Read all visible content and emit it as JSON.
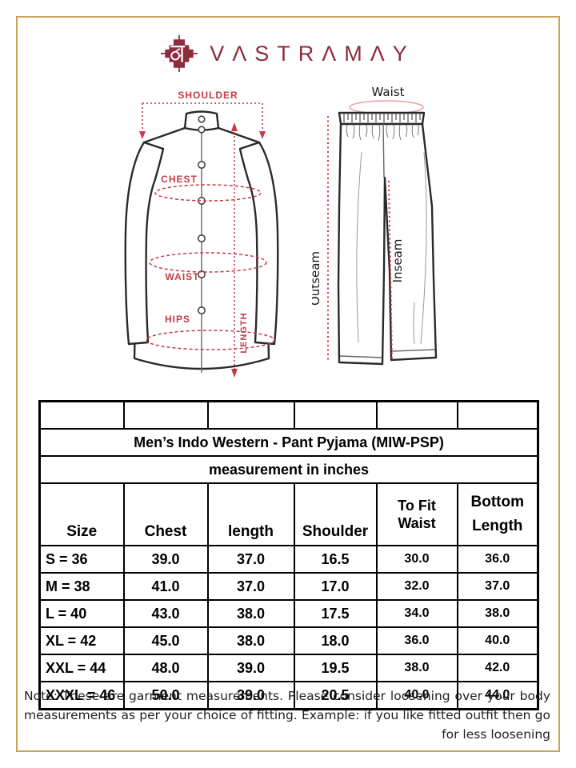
{
  "brand": {
    "name": "VASTRAMAY",
    "display": "VΛSTRΛMΛY",
    "logo_glyph": "व"
  },
  "diagrams": {
    "kurta": {
      "shoulder": "SHOULDER",
      "chest": "CHEST",
      "waist": "WAIST",
      "hips": "HIPS",
      "length": "LENGTH"
    },
    "pant": {
      "waist": "Waist",
      "outseam": "Outseam",
      "inseam": "Inseam"
    }
  },
  "size_chart": {
    "title": "Men’s Indo Western - Pant Pyjama (MIW-PSP)",
    "subtitle": "measurement in inches",
    "columns": [
      "Size",
      "Chest",
      "length",
      "Shoulder",
      "To Fit Waist",
      "Bottom Length"
    ],
    "column_keys": [
      "size",
      "chest",
      "length",
      "shoulder",
      "to_fit_waist",
      "bottom_length"
    ],
    "rows": [
      [
        "S = 36",
        "39.0",
        "37.0",
        "16.5",
        "30.0",
        "36.0"
      ],
      [
        "M = 38",
        "41.0",
        "37.0",
        "17.0",
        "32.0",
        "37.0"
      ],
      [
        "L = 40",
        "43.0",
        "38.0",
        "17.5",
        "34.0",
        "38.0"
      ],
      [
        "XL = 42",
        "45.0",
        "38.0",
        "18.0",
        "36.0",
        "40.0"
      ],
      [
        "XXL = 44",
        "48.0",
        "39.0",
        "19.5",
        "38.0",
        "42.0"
      ],
      [
        "XXXL = 46",
        "50.0",
        "39.0",
        "20.5",
        "40.0",
        "44.0"
      ]
    ]
  },
  "note": "Note: These are garment measurements. Please consider loosening over your body measurements as per your choice of fitting. Example: if you like fitted outfit then go for less loosening",
  "colors": {
    "brand_maroon": "#8e2b3e",
    "annotation_red": "#c43b45",
    "dotted_red": "#d22f38",
    "frame_gold": "#c8a35a",
    "waist_ellipse_pink": "#e9a1a1",
    "table_border": "#000000"
  }
}
